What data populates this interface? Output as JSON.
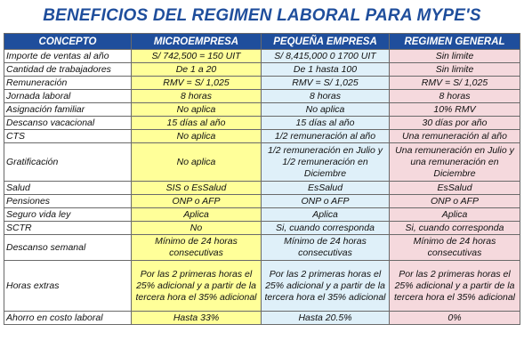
{
  "title": "BENEFICIOS DEL REGIMEN LABORAL PARA MYPE'S",
  "headers": [
    "CONCEPTO",
    "MICROEMPRESA",
    "PEQUEÑA EMPRESA",
    "REGIMEN GENERAL"
  ],
  "rows": [
    {
      "concept": "Importe de ventas al año",
      "micro": "S/ 742,500 = 150 UIT",
      "pequena": "S/ 8,415,000 0 1700 UIT",
      "general": "Sin limite"
    },
    {
      "concept": "Cantidad de trabajadores",
      "micro": "De 1 a 20",
      "pequena": "De 1 hasta 100",
      "general": "Sin limite"
    },
    {
      "concept": "Remuneración",
      "micro": "RMV = S/ 1,025",
      "pequena": "RMV = S/ 1,025",
      "general": "RMV = S/ 1,025"
    },
    {
      "concept": "Jornada laboral",
      "micro": "8 horas",
      "pequena": "8 horas",
      "general": "8 horas"
    },
    {
      "concept": "Asignación familiar",
      "micro": "No aplica",
      "pequena": "No aplica",
      "general": "10% RMV"
    },
    {
      "concept": "Descanso vacacional",
      "micro": "15 días al año",
      "pequena": "15 días al año",
      "general": "30 días por año"
    },
    {
      "concept": "CTS",
      "micro": "No aplica",
      "pequena": "1/2 remuneración al año",
      "general": "Una remuneración al año"
    },
    {
      "concept": "Gratificación",
      "micro": "No aplica",
      "pequena": "1/2 remuneración en Julio y 1/2 remuneración en Diciembre",
      "general": "Una remuneración en Julio y una remuneración en Diciembre"
    },
    {
      "concept": "Salud",
      "micro": "SIS o EsSalud",
      "pequena": "EsSalud",
      "general": "EsSalud"
    },
    {
      "concept": "Pensiones",
      "micro": "ONP o AFP",
      "pequena": "ONP o AFP",
      "general": "ONP o AFP"
    },
    {
      "concept": "Seguro vida ley",
      "micro": "Aplica",
      "pequena": "Aplica",
      "general": "Aplica"
    },
    {
      "concept": "SCTR",
      "micro": "No",
      "pequena": "Si, cuando corresponda",
      "general": "Si, cuando corresponda"
    },
    {
      "concept": "Descanso semanal",
      "micro": "Mínimo de 24 horas consecutivas",
      "pequena": "Mínimo de 24 horas consecutivas",
      "general": "Mínimo de 24 horas consecutivas"
    },
    {
      "concept": "Horas extras",
      "micro": "Por las 2 primeras horas el 25% adicional y a partir de la tercera hora el 35% adicional",
      "pequena": "Por las 2 primeras horas el 25% adicional y a partir de la tercera hora el 35% adicional",
      "general": "Por las 2 primeras horas el 25% adicional y a partir de la tercera hora el 35% adicional"
    },
    {
      "concept": "Ahorro en costo laboral",
      "micro": "Hasta 33%",
      "pequena": "Hasta 20.5%",
      "general": "0%"
    }
  ]
}
